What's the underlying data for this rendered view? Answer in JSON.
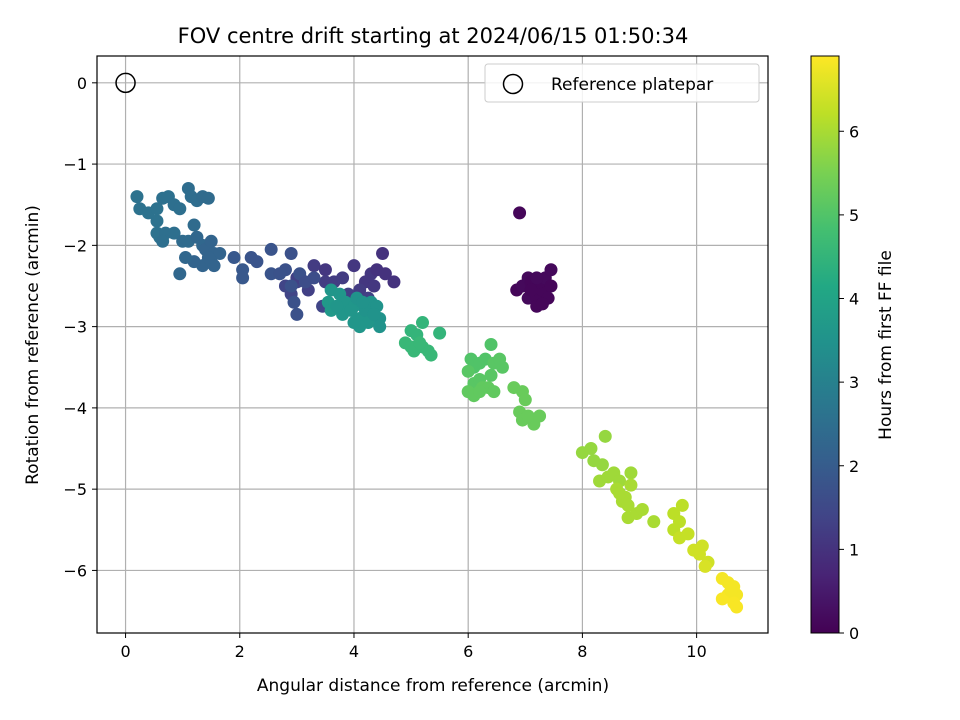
{
  "chart_data": {
    "type": "scatter",
    "title": "FOV centre drift starting at 2024/06/15 01:50:34",
    "xlabel": "Angular distance from reference (arcmin)",
    "ylabel": "Rotation from reference (arcmin)",
    "xlim": [
      -0.5,
      11.25
    ],
    "ylim": [
      -6.77,
      0.33
    ],
    "x_ticks": [
      0,
      2,
      4,
      6,
      8,
      10
    ],
    "y_ticks": [
      0,
      -1,
      -2,
      -3,
      -4,
      -5,
      -6
    ],
    "grid": true,
    "legend": {
      "position": "top-right",
      "entries": [
        "Reference platepar"
      ]
    },
    "reference_point": {
      "x": 0,
      "y": 0
    },
    "colorbar": {
      "label": "Hours from first FF file",
      "range": [
        0,
        6.9
      ],
      "ticks": [
        0,
        1,
        2,
        3,
        4,
        5,
        6
      ],
      "colormap": "viridis"
    },
    "points": [
      [
        6.9,
        -1.6,
        0.1
      ],
      [
        6.85,
        -2.55,
        0.1
      ],
      [
        6.95,
        -2.5,
        0.15
      ],
      [
        7.05,
        -2.4,
        0.15
      ],
      [
        7.1,
        -2.45,
        0.1
      ],
      [
        7.15,
        -2.55,
        0.1
      ],
      [
        7.05,
        -2.65,
        0.15
      ],
      [
        7.2,
        -2.65,
        0.1
      ],
      [
        7.3,
        -2.55,
        0.1
      ],
      [
        7.25,
        -2.45,
        0.1
      ],
      [
        7.35,
        -2.4,
        0.15
      ],
      [
        7.45,
        -2.3,
        0.15
      ],
      [
        7.45,
        -2.5,
        0.1
      ],
      [
        7.4,
        -2.65,
        0.1
      ],
      [
        7.2,
        -2.75,
        0.1
      ],
      [
        7.3,
        -2.72,
        0.1
      ],
      [
        7.2,
        -2.4,
        0.15
      ],
      [
        7.1,
        -2.55,
        0.1
      ],
      [
        4.5,
        -2.1,
        1.0
      ],
      [
        3.3,
        -2.25,
        1.2
      ],
      [
        3.5,
        -2.3,
        1.1
      ],
      [
        4.0,
        -2.25,
        1.1
      ],
      [
        3.65,
        -2.45,
        1.2
      ],
      [
        3.8,
        -2.4,
        1.2
      ],
      [
        3.5,
        -2.45,
        1.2
      ],
      [
        4.3,
        -2.35,
        1.1
      ],
      [
        4.4,
        -2.3,
        1.0
      ],
      [
        4.55,
        -2.35,
        1.0
      ],
      [
        4.7,
        -2.45,
        1.0
      ],
      [
        4.2,
        -2.45,
        1.1
      ],
      [
        4.1,
        -2.55,
        1.2
      ],
      [
        3.9,
        -2.6,
        1.3
      ],
      [
        3.0,
        -2.45,
        1.4
      ],
      [
        2.9,
        -2.6,
        1.4
      ],
      [
        3.2,
        -2.55,
        1.3
      ],
      [
        3.0,
        -2.4,
        1.3
      ],
      [
        4.25,
        -2.65,
        1.3
      ],
      [
        3.45,
        -2.75,
        1.4
      ],
      [
        2.8,
        -2.5,
        1.4
      ],
      [
        4.35,
        -2.5,
        1.1
      ],
      [
        1.9,
        -2.15,
        1.9
      ],
      [
        2.2,
        -2.15,
        1.8
      ],
      [
        2.3,
        -2.2,
        1.8
      ],
      [
        2.05,
        -2.3,
        1.9
      ],
      [
        2.05,
        -2.4,
        1.9
      ],
      [
        2.55,
        -2.05,
        1.8
      ],
      [
        2.55,
        -2.35,
        1.8
      ],
      [
        2.8,
        -2.3,
        1.7
      ],
      [
        2.9,
        -2.1,
        1.7
      ],
      [
        2.9,
        -2.5,
        1.7
      ],
      [
        3.05,
        -2.35,
        1.7
      ],
      [
        3.15,
        -2.45,
        1.6
      ],
      [
        2.95,
        -2.7,
        1.7
      ],
      [
        3.0,
        -2.85,
        1.7
      ],
      [
        3.3,
        -2.4,
        1.6
      ],
      [
        2.7,
        -2.35,
        1.75
      ],
      [
        0.2,
        -1.4,
        2.6
      ],
      [
        0.25,
        -1.55,
        2.6
      ],
      [
        0.4,
        -1.6,
        2.6
      ],
      [
        0.55,
        -1.55,
        2.6
      ],
      [
        0.55,
        -1.7,
        2.6
      ],
      [
        0.65,
        -1.42,
        2.55
      ],
      [
        0.75,
        -1.4,
        2.55
      ],
      [
        0.85,
        -1.5,
        2.5
      ],
      [
        0.95,
        -1.55,
        2.5
      ],
      [
        0.55,
        -1.85,
        2.6
      ],
      [
        0.6,
        -1.9,
        2.6
      ],
      [
        0.7,
        -1.85,
        2.5
      ],
      [
        0.85,
        -1.85,
        2.5
      ],
      [
        1.0,
        -1.95,
        2.4
      ],
      [
        1.1,
        -1.3,
        2.45
      ],
      [
        1.15,
        -1.4,
        2.45
      ],
      [
        1.25,
        -1.45,
        2.45
      ],
      [
        1.35,
        -1.4,
        2.4
      ],
      [
        1.45,
        -1.42,
        2.4
      ],
      [
        1.2,
        -1.75,
        2.4
      ],
      [
        1.1,
        -1.95,
        2.4
      ],
      [
        1.25,
        -1.9,
        2.3
      ],
      [
        1.35,
        -2.0,
        2.3
      ],
      [
        1.4,
        -2.05,
        2.2
      ],
      [
        1.5,
        -1.95,
        2.2
      ],
      [
        1.55,
        -2.1,
        2.2
      ],
      [
        1.65,
        -2.1,
        2.2
      ],
      [
        1.5,
        -2.2,
        2.2
      ],
      [
        1.35,
        -2.25,
        2.2
      ],
      [
        1.2,
        -2.2,
        2.2
      ],
      [
        1.05,
        -2.15,
        2.3
      ],
      [
        0.95,
        -2.35,
        2.3
      ],
      [
        0.65,
        -1.95,
        2.5
      ],
      [
        1.55,
        -2.25,
        2.2
      ],
      [
        1.45,
        -2.15,
        2.2
      ],
      [
        3.6,
        -2.55,
        3.6
      ],
      [
        3.75,
        -2.6,
        3.6
      ],
      [
        3.55,
        -2.7,
        3.7
      ],
      [
        3.6,
        -2.8,
        3.7
      ],
      [
        3.85,
        -2.7,
        3.6
      ],
      [
        3.8,
        -2.85,
        3.6
      ],
      [
        4.0,
        -2.75,
        3.6
      ],
      [
        4.05,
        -2.65,
        3.5
      ],
      [
        4.1,
        -2.9,
        3.6
      ],
      [
        4.2,
        -2.8,
        3.5
      ],
      [
        4.3,
        -2.7,
        3.5
      ],
      [
        4.4,
        -2.75,
        3.5
      ],
      [
        4.25,
        -2.95,
        3.6
      ],
      [
        4.1,
        -3.0,
        3.6
      ],
      [
        4.0,
        -2.95,
        3.6
      ],
      [
        3.95,
        -2.8,
        3.6
      ],
      [
        4.45,
        -2.9,
        3.5
      ],
      [
        4.45,
        -3.0,
        3.5
      ],
      [
        4.35,
        -2.85,
        3.5
      ],
      [
        3.7,
        -2.75,
        3.6
      ],
      [
        4.15,
        -2.7,
        3.5
      ],
      [
        4.9,
        -3.2,
        4.6
      ],
      [
        5.0,
        -3.05,
        4.5
      ],
      [
        5.1,
        -3.1,
        4.5
      ],
      [
        5.05,
        -3.3,
        4.6
      ],
      [
        5.2,
        -2.95,
        4.5
      ],
      [
        5.2,
        -3.25,
        4.6
      ],
      [
        5.3,
        -3.3,
        4.6
      ],
      [
        5.35,
        -3.35,
        4.6
      ],
      [
        5.5,
        -3.08,
        4.5
      ],
      [
        5.0,
        -3.25,
        4.6
      ],
      [
        5.15,
        -3.2,
        4.6
      ],
      [
        6.05,
        -3.4,
        5.0
      ],
      [
        6.1,
        -3.5,
        5.0
      ],
      [
        6.2,
        -3.45,
        5.0
      ],
      [
        6.3,
        -3.4,
        5.0
      ],
      [
        6.4,
        -3.22,
        5.0
      ],
      [
        6.45,
        -3.45,
        5.1
      ],
      [
        6.55,
        -3.4,
        5.1
      ],
      [
        6.6,
        -3.5,
        5.1
      ],
      [
        6.0,
        -3.55,
        5.1
      ],
      [
        6.1,
        -3.7,
        5.1
      ],
      [
        6.2,
        -3.65,
        5.1
      ],
      [
        6.25,
        -3.75,
        5.2
      ],
      [
        6.35,
        -3.75,
        5.2
      ],
      [
        6.0,
        -3.8,
        5.2
      ],
      [
        6.1,
        -3.85,
        5.2
      ],
      [
        6.2,
        -3.8,
        5.2
      ],
      [
        6.45,
        -3.8,
        5.2
      ],
      [
        6.8,
        -3.75,
        5.3
      ],
      [
        6.95,
        -3.8,
        5.3
      ],
      [
        6.9,
        -4.05,
        5.3
      ],
      [
        7.0,
        -3.9,
        5.3
      ],
      [
        6.95,
        -4.15,
        5.3
      ],
      [
        7.15,
        -4.2,
        5.3
      ],
      [
        7.05,
        -4.1,
        5.3
      ],
      [
        7.25,
        -4.1,
        5.3
      ],
      [
        6.4,
        -3.6,
        5.1
      ],
      [
        8.4,
        -4.35,
        5.8
      ],
      [
        8.0,
        -4.55,
        5.8
      ],
      [
        8.15,
        -4.5,
        5.8
      ],
      [
        8.2,
        -4.65,
        5.8
      ],
      [
        8.35,
        -4.7,
        5.8
      ],
      [
        8.3,
        -4.9,
        5.9
      ],
      [
        8.45,
        -4.85,
        5.9
      ],
      [
        8.55,
        -4.8,
        5.9
      ],
      [
        8.65,
        -4.9,
        5.9
      ],
      [
        8.85,
        -4.8,
        5.9
      ],
      [
        8.6,
        -5.0,
        6.0
      ],
      [
        8.75,
        -5.1,
        6.0
      ],
      [
        8.85,
        -4.95,
        6.0
      ],
      [
        8.7,
        -5.15,
        6.0
      ],
      [
        8.8,
        -5.35,
        6.0
      ],
      [
        8.95,
        -5.3,
        6.0
      ],
      [
        9.05,
        -5.25,
        6.0
      ],
      [
        9.25,
        -5.4,
        6.0
      ],
      [
        8.8,
        -5.2,
        6.0
      ],
      [
        8.65,
        -5.05,
        6.0
      ],
      [
        9.6,
        -5.3,
        6.2
      ],
      [
        9.7,
        -5.4,
        6.2
      ],
      [
        9.75,
        -5.2,
        6.2
      ],
      [
        9.6,
        -5.5,
        6.2
      ],
      [
        9.7,
        -5.6,
        6.3
      ],
      [
        9.85,
        -5.55,
        6.3
      ],
      [
        9.95,
        -5.75,
        6.4
      ],
      [
        10.1,
        -5.7,
        6.4
      ],
      [
        10.05,
        -5.8,
        6.4
      ],
      [
        10.2,
        -5.9,
        6.4
      ],
      [
        10.15,
        -5.95,
        6.5
      ],
      [
        10.45,
        -6.1,
        6.8
      ],
      [
        10.55,
        -6.15,
        6.8
      ],
      [
        10.65,
        -6.2,
        6.8
      ],
      [
        10.7,
        -6.3,
        6.8
      ],
      [
        10.55,
        -6.3,
        6.8
      ],
      [
        10.45,
        -6.35,
        6.85
      ],
      [
        10.65,
        -6.4,
        6.85
      ],
      [
        10.7,
        -6.45,
        6.85
      ],
      [
        10.6,
        -6.25,
        6.8
      ]
    ]
  }
}
